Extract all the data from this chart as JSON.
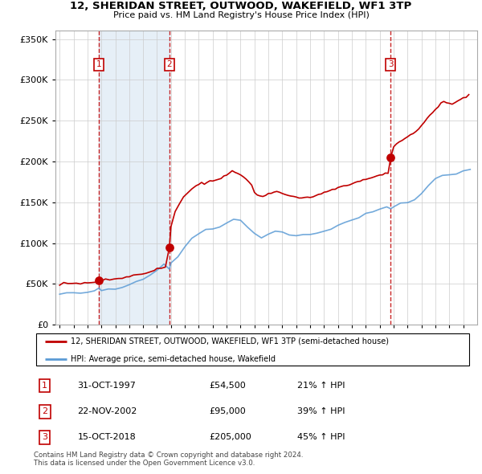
{
  "title_line1": "12, SHERIDAN STREET, OUTWOOD, WAKEFIELD, WF1 3TP",
  "title_line2": "Price paid vs. HM Land Registry's House Price Index (HPI)",
  "legend_label1": "12, SHERIDAN STREET, OUTWOOD, WAKEFIELD, WF1 3TP (semi-detached house)",
  "legend_label2": "HPI: Average price, semi-detached house, Wakefield",
  "table_rows": [
    {
      "num": "1",
      "date": "31-OCT-1997",
      "price": "£54,500",
      "change": "21% ↑ HPI"
    },
    {
      "num": "2",
      "date": "22-NOV-2002",
      "price": "£95,000",
      "change": "39% ↑ HPI"
    },
    {
      "num": "3",
      "date": "15-OCT-2018",
      "price": "£205,000",
      "change": "45% ↑ HPI"
    }
  ],
  "sale_dates": [
    1997.83,
    2002.89,
    2018.79
  ],
  "sale_prices": [
    54500,
    95000,
    205000
  ],
  "footer": "Contains HM Land Registry data © Crown copyright and database right 2024.\nThis data is licensed under the Open Government Licence v3.0.",
  "hpi_color": "#5b9bd5",
  "sale_color": "#c00000",
  "vline_color": "#c00000",
  "shading_color": "#dce9f5",
  "ylim": [
    0,
    360000
  ],
  "xlim_start": 1994.7,
  "xlim_end": 2025.0,
  "hpi_key_points": [
    [
      1995.0,
      38000
    ],
    [
      1995.5,
      38500
    ],
    [
      1996.0,
      39000
    ],
    [
      1996.5,
      39500
    ],
    [
      1997.0,
      40000
    ],
    [
      1997.5,
      40500
    ],
    [
      1997.83,
      45000
    ],
    [
      1998.0,
      42000
    ],
    [
      1998.5,
      43000
    ],
    [
      1999.0,
      44000
    ],
    [
      1999.5,
      46000
    ],
    [
      2000.0,
      49000
    ],
    [
      2000.5,
      52000
    ],
    [
      2001.0,
      56000
    ],
    [
      2001.5,
      61000
    ],
    [
      2002.0,
      67000
    ],
    [
      2002.5,
      73000
    ],
    [
      2002.89,
      68000
    ],
    [
      2003.0,
      75000
    ],
    [
      2003.5,
      83000
    ],
    [
      2004.0,
      95000
    ],
    [
      2004.5,
      105000
    ],
    [
      2005.0,
      112000
    ],
    [
      2005.5,
      116000
    ],
    [
      2006.0,
      118000
    ],
    [
      2006.5,
      120000
    ],
    [
      2007.0,
      124000
    ],
    [
      2007.5,
      130000
    ],
    [
      2008.0,
      128000
    ],
    [
      2008.5,
      120000
    ],
    [
      2009.0,
      112000
    ],
    [
      2009.5,
      108000
    ],
    [
      2010.0,
      112000
    ],
    [
      2010.5,
      115000
    ],
    [
      2011.0,
      113000
    ],
    [
      2011.5,
      110000
    ],
    [
      2012.0,
      109000
    ],
    [
      2012.5,
      110000
    ],
    [
      2013.0,
      111000
    ],
    [
      2013.5,
      112000
    ],
    [
      2014.0,
      115000
    ],
    [
      2014.5,
      118000
    ],
    [
      2015.0,
      122000
    ],
    [
      2015.5,
      125000
    ],
    [
      2016.0,
      128000
    ],
    [
      2016.5,
      131000
    ],
    [
      2017.0,
      135000
    ],
    [
      2017.5,
      138000
    ],
    [
      2018.0,
      141000
    ],
    [
      2018.5,
      143000
    ],
    [
      2018.79,
      142000
    ],
    [
      2019.0,
      145000
    ],
    [
      2019.5,
      148000
    ],
    [
      2020.0,
      150000
    ],
    [
      2020.5,
      153000
    ],
    [
      2021.0,
      160000
    ],
    [
      2021.5,
      170000
    ],
    [
      2022.0,
      178000
    ],
    [
      2022.5,
      182000
    ],
    [
      2023.0,
      183000
    ],
    [
      2023.5,
      185000
    ],
    [
      2024.0,
      188000
    ],
    [
      2024.5,
      190000
    ]
  ],
  "red_key_points": [
    [
      1995.0,
      49000
    ],
    [
      1995.3,
      51000
    ],
    [
      1995.6,
      50000
    ],
    [
      1995.9,
      50500
    ],
    [
      1996.2,
      51000
    ],
    [
      1996.5,
      50500
    ],
    [
      1996.8,
      51500
    ],
    [
      1997.0,
      51000
    ],
    [
      1997.3,
      52000
    ],
    [
      1997.6,
      51500
    ],
    [
      1997.83,
      54500
    ],
    [
      1998.0,
      54800
    ],
    [
      1998.3,
      55500
    ],
    [
      1998.6,
      55000
    ],
    [
      1998.9,
      56000
    ],
    [
      1999.2,
      57000
    ],
    [
      1999.5,
      57500
    ],
    [
      1999.8,
      58000
    ],
    [
      2000.0,
      59000
    ],
    [
      2000.3,
      60000
    ],
    [
      2000.6,
      61000
    ],
    [
      2000.9,
      62000
    ],
    [
      2001.2,
      63500
    ],
    [
      2001.5,
      65000
    ],
    [
      2001.8,
      67000
    ],
    [
      2002.0,
      68000
    ],
    [
      2002.3,
      69000
    ],
    [
      2002.6,
      70000
    ],
    [
      2002.89,
      95000
    ],
    [
      2003.0,
      120000
    ],
    [
      2003.3,
      138000
    ],
    [
      2003.6,
      148000
    ],
    [
      2003.9,
      156000
    ],
    [
      2004.2,
      162000
    ],
    [
      2004.5,
      167000
    ],
    [
      2004.8,
      170000
    ],
    [
      2005.0,
      172000
    ],
    [
      2005.2,
      174000
    ],
    [
      2005.4,
      173000
    ],
    [
      2005.6,
      174000
    ],
    [
      2005.8,
      175000
    ],
    [
      2006.0,
      176000
    ],
    [
      2006.2,
      177000
    ],
    [
      2006.4,
      178000
    ],
    [
      2006.6,
      180000
    ],
    [
      2006.8,
      182000
    ],
    [
      2007.0,
      184000
    ],
    [
      2007.2,
      186000
    ],
    [
      2007.4,
      188000
    ],
    [
      2007.6,
      187000
    ],
    [
      2007.8,
      185000
    ],
    [
      2008.0,
      183000
    ],
    [
      2008.2,
      181000
    ],
    [
      2008.4,
      179000
    ],
    [
      2008.6,
      175000
    ],
    [
      2008.8,
      170000
    ],
    [
      2009.0,
      163000
    ],
    [
      2009.2,
      159000
    ],
    [
      2009.4,
      158000
    ],
    [
      2009.6,
      157000
    ],
    [
      2009.8,
      158000
    ],
    [
      2010.0,
      160000
    ],
    [
      2010.2,
      161000
    ],
    [
      2010.4,
      162000
    ],
    [
      2010.6,
      163000
    ],
    [
      2010.8,
      162000
    ],
    [
      2011.0,
      161000
    ],
    [
      2011.2,
      160000
    ],
    [
      2011.4,
      159000
    ],
    [
      2011.6,
      158000
    ],
    [
      2011.8,
      157000
    ],
    [
      2012.0,
      156000
    ],
    [
      2012.2,
      155000
    ],
    [
      2012.4,
      155500
    ],
    [
      2012.6,
      155000
    ],
    [
      2012.8,
      155500
    ],
    [
      2013.0,
      156000
    ],
    [
      2013.2,
      157000
    ],
    [
      2013.4,
      158000
    ],
    [
      2013.6,
      159000
    ],
    [
      2013.8,
      160000
    ],
    [
      2014.0,
      162000
    ],
    [
      2014.2,
      163000
    ],
    [
      2014.4,
      164000
    ],
    [
      2014.6,
      165000
    ],
    [
      2014.8,
      166000
    ],
    [
      2015.0,
      168000
    ],
    [
      2015.2,
      169000
    ],
    [
      2015.4,
      170000
    ],
    [
      2015.6,
      171000
    ],
    [
      2015.8,
      172000
    ],
    [
      2016.0,
      173000
    ],
    [
      2016.2,
      174000
    ],
    [
      2016.4,
      175000
    ],
    [
      2016.6,
      176000
    ],
    [
      2016.8,
      177000
    ],
    [
      2017.0,
      178000
    ],
    [
      2017.2,
      179000
    ],
    [
      2017.4,
      180000
    ],
    [
      2017.6,
      181000
    ],
    [
      2017.8,
      182000
    ],
    [
      2018.0,
      183000
    ],
    [
      2018.2,
      184000
    ],
    [
      2018.4,
      185000
    ],
    [
      2018.6,
      186000
    ],
    [
      2018.79,
      205000
    ],
    [
      2019.0,
      218000
    ],
    [
      2019.2,
      222000
    ],
    [
      2019.4,
      224000
    ],
    [
      2019.6,
      226000
    ],
    [
      2019.8,
      228000
    ],
    [
      2020.0,
      230000
    ],
    [
      2020.2,
      232000
    ],
    [
      2020.4,
      234000
    ],
    [
      2020.6,
      237000
    ],
    [
      2020.8,
      240000
    ],
    [
      2021.0,
      244000
    ],
    [
      2021.2,
      248000
    ],
    [
      2021.4,
      252000
    ],
    [
      2021.6,
      256000
    ],
    [
      2021.8,
      260000
    ],
    [
      2022.0,
      264000
    ],
    [
      2022.2,
      268000
    ],
    [
      2022.4,
      272000
    ],
    [
      2022.6,
      274000
    ],
    [
      2022.8,
      272000
    ],
    [
      2023.0,
      271000
    ],
    [
      2023.2,
      270000
    ],
    [
      2023.4,
      272000
    ],
    [
      2023.6,
      274000
    ],
    [
      2023.8,
      276000
    ],
    [
      2024.0,
      278000
    ],
    [
      2024.2,
      280000
    ],
    [
      2024.4,
      282000
    ]
  ]
}
